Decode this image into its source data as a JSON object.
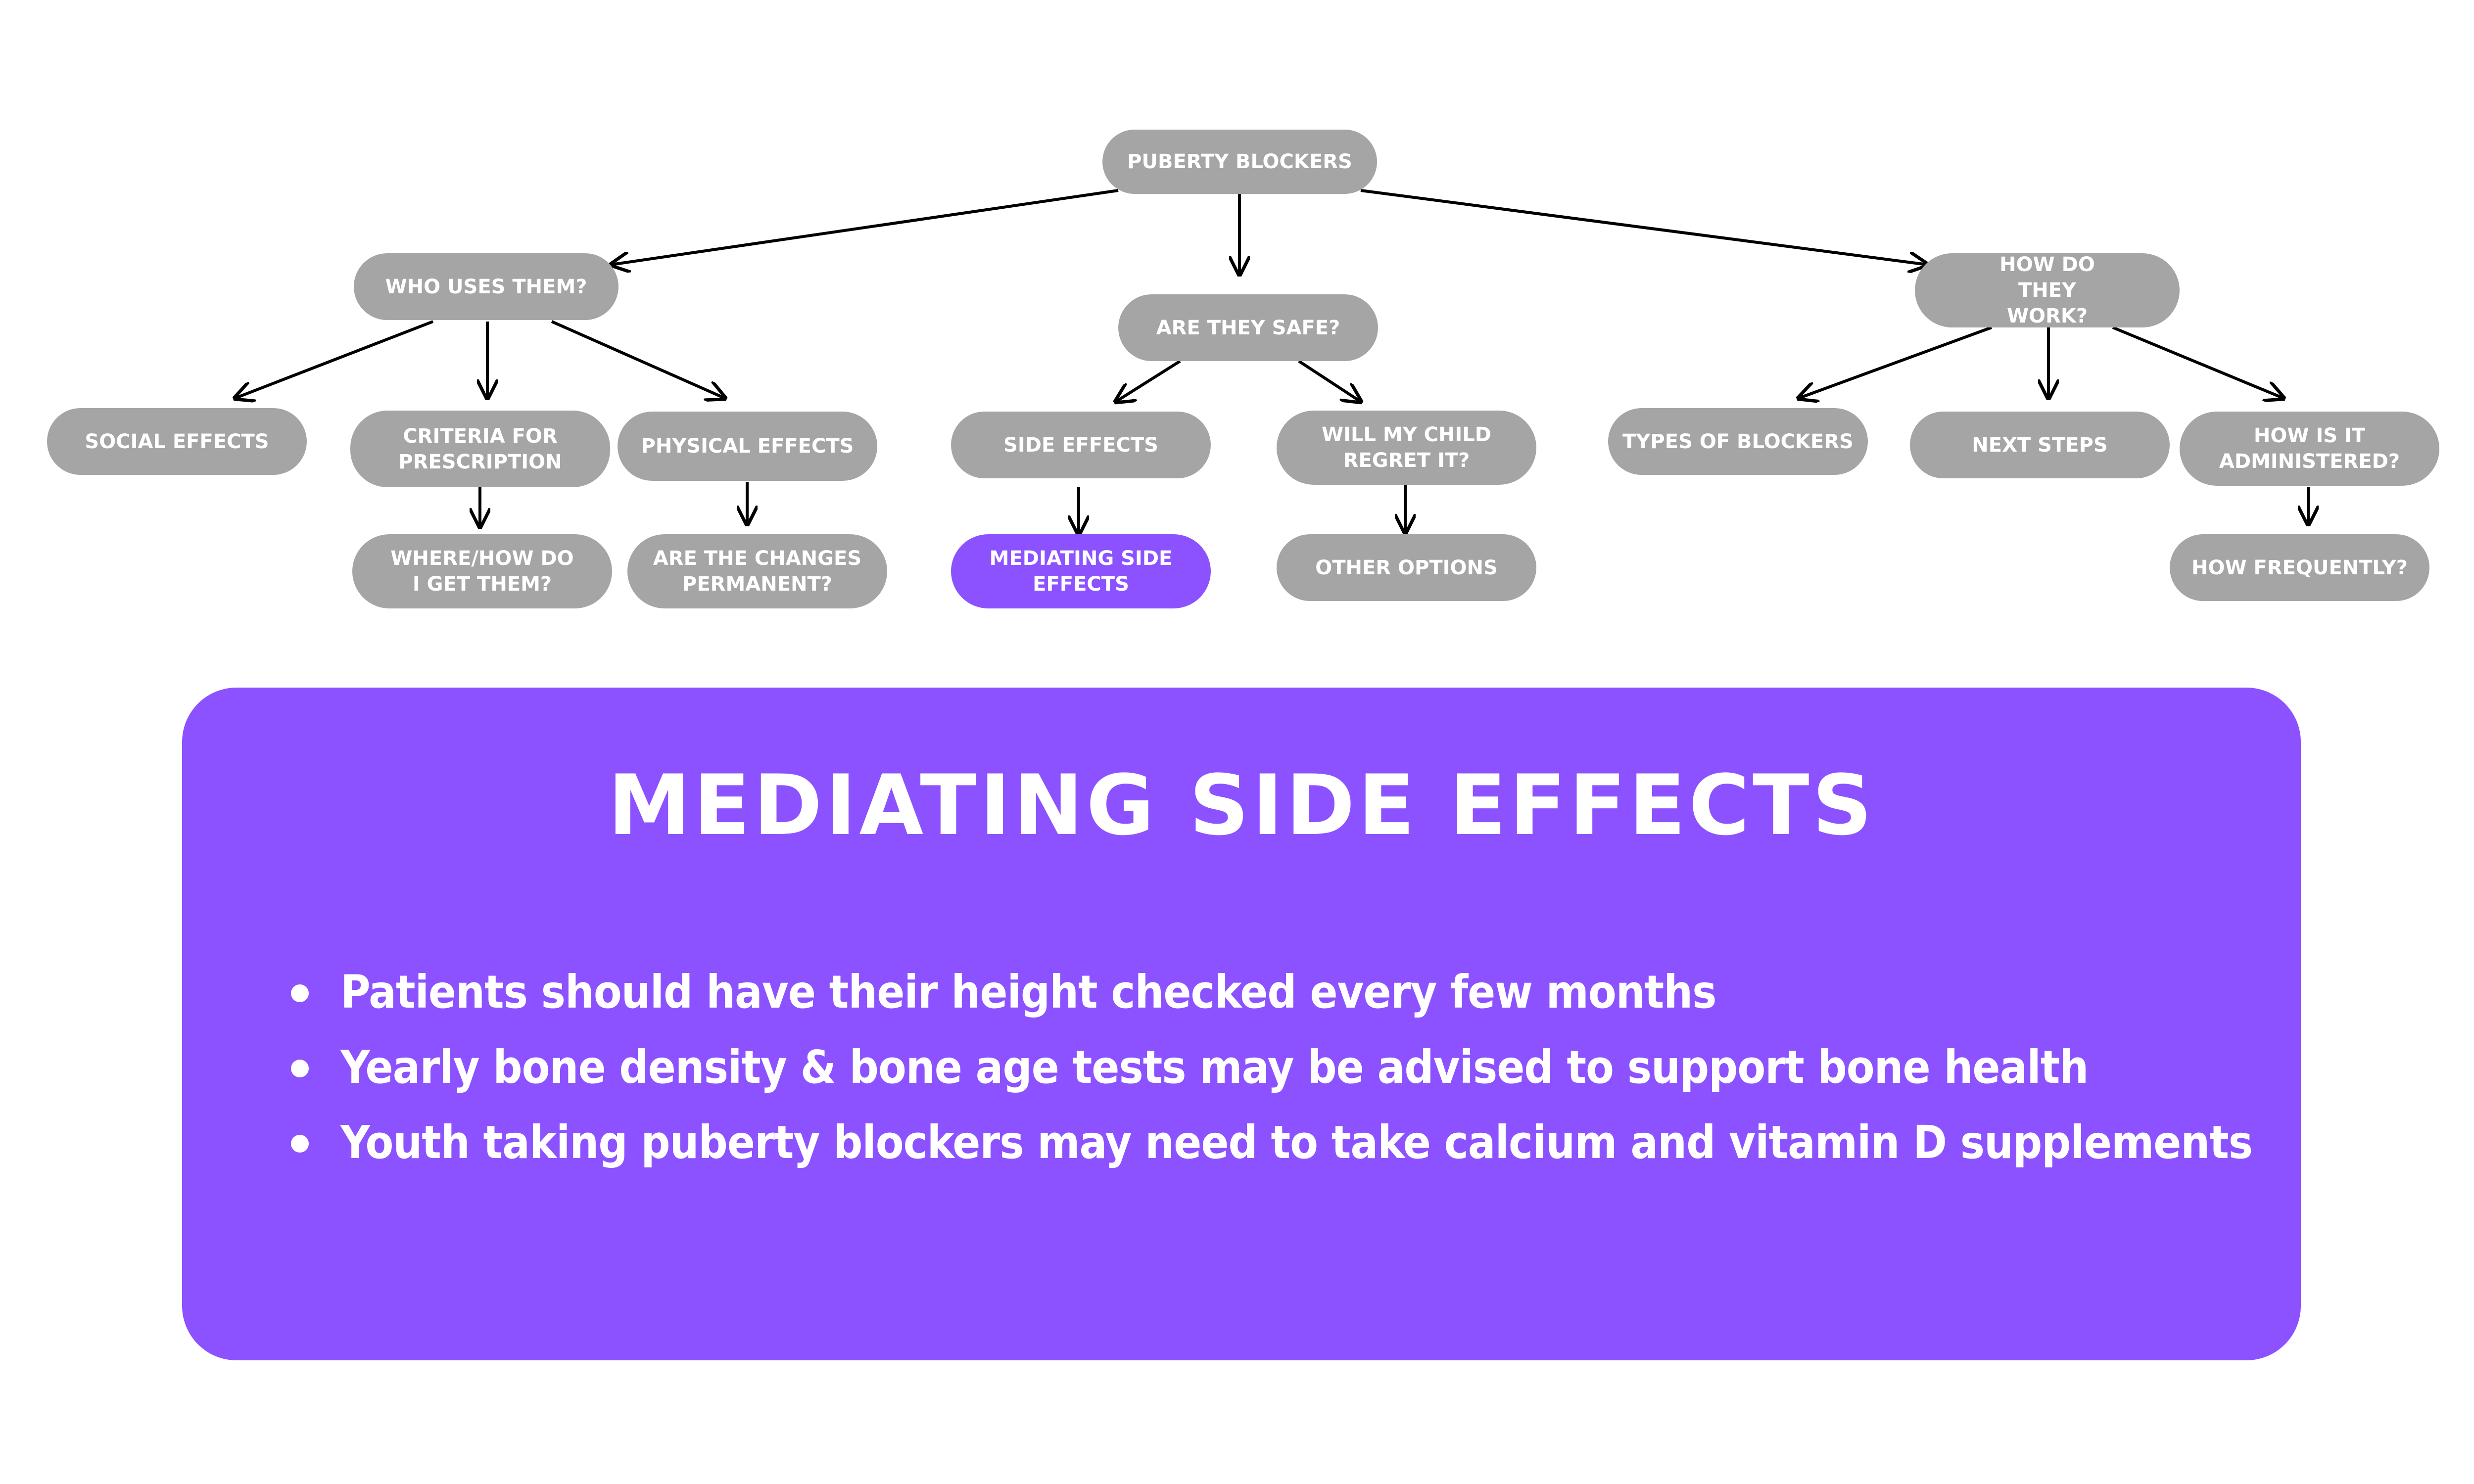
{
  "colors": {
    "node": "#a5a5a5",
    "highlight": "#8c52ff",
    "text": "#ffffff",
    "line": "#000000"
  },
  "tree": {
    "root": "PUBERTY BLOCKERS",
    "who_uses": "WHO USES THEM?",
    "safe": "ARE THEY SAFE?",
    "how_work": "HOW DO THEY WORK?",
    "social": "SOCIAL EFFECTS",
    "criteria": "CRITERIA FOR PRESCRIPTION",
    "physical": "PHYSICAL EFFECTS",
    "where": "WHERE/HOW DO I GET THEM?",
    "permanent": "ARE THE CHANGES PERMANENT?",
    "side": "SIDE EFFECTS",
    "regret": "WILL MY CHILD REGRET IT?",
    "mediating": "MEDIATING SIDE EFFECTS",
    "other": "OTHER OPTIONS",
    "types": "TYPES OF BLOCKERS",
    "next": "NEXT STEPS",
    "administered": "HOW IS IT ADMINISTERED?",
    "frequently": "HOW FREQUENTLY?"
  },
  "panel": {
    "title": "MEDIATING SIDE EFFECTS",
    "bullets": [
      "Patients should have their height checked every few months",
      "Yearly bone density & bone age tests may be advised to support bone health",
      "Youth taking puberty blockers may need to take calcium and vitamin D supplements"
    ]
  }
}
